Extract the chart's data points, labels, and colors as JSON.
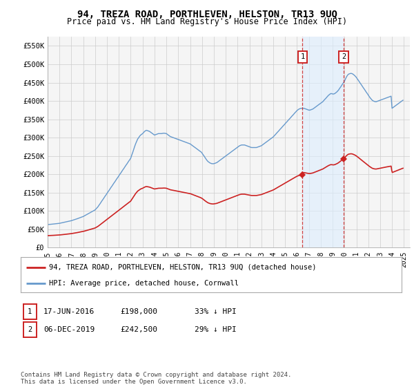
{
  "title": "94, TREZA ROAD, PORTHLEVEN, HELSTON, TR13 9UQ",
  "subtitle": "Price paid vs. HM Land Registry's House Price Index (HPI)",
  "hpi_color": "#6699cc",
  "price_color": "#cc2222",
  "vline_color": "#cc2222",
  "highlight_bg": "#ddeeff",
  "ylim": [
    0,
    575000
  ],
  "yticks": [
    0,
    50000,
    100000,
    150000,
    200000,
    250000,
    300000,
    350000,
    400000,
    450000,
    500000,
    550000
  ],
  "ytick_labels": [
    "£0",
    "£50K",
    "£100K",
    "£150K",
    "£200K",
    "£250K",
    "£300K",
    "£350K",
    "£400K",
    "£450K",
    "£500K",
    "£550K"
  ],
  "xlim_start": 1995.0,
  "xlim_end": 2025.5,
  "xtick_years": [
    1995,
    1996,
    1997,
    1998,
    1999,
    2000,
    2001,
    2002,
    2003,
    2004,
    2005,
    2006,
    2007,
    2008,
    2009,
    2010,
    2011,
    2012,
    2013,
    2014,
    2015,
    2016,
    2017,
    2018,
    2019,
    2020,
    2021,
    2022,
    2023,
    2024,
    2025
  ],
  "hpi_x": [
    1995.0,
    1995.08,
    1995.17,
    1995.25,
    1995.33,
    1995.42,
    1995.5,
    1995.58,
    1995.67,
    1995.75,
    1995.83,
    1995.92,
    1996.0,
    1996.08,
    1996.17,
    1996.25,
    1996.33,
    1996.42,
    1996.5,
    1996.58,
    1996.67,
    1996.75,
    1996.83,
    1996.92,
    1997.0,
    1997.08,
    1997.17,
    1997.25,
    1997.33,
    1997.42,
    1997.5,
    1997.58,
    1997.67,
    1997.75,
    1997.83,
    1997.92,
    1998.0,
    1998.08,
    1998.17,
    1998.25,
    1998.33,
    1998.42,
    1998.5,
    1998.58,
    1998.67,
    1998.75,
    1998.83,
    1998.92,
    1999.0,
    1999.08,
    1999.17,
    1999.25,
    1999.33,
    1999.42,
    1999.5,
    1999.58,
    1999.67,
    1999.75,
    1999.83,
    1999.92,
    2000.0,
    2000.08,
    2000.17,
    2000.25,
    2000.33,
    2000.42,
    2000.5,
    2000.58,
    2000.67,
    2000.75,
    2000.83,
    2000.92,
    2001.0,
    2001.08,
    2001.17,
    2001.25,
    2001.33,
    2001.42,
    2001.5,
    2001.58,
    2001.67,
    2001.75,
    2001.83,
    2001.92,
    2002.0,
    2002.08,
    2002.17,
    2002.25,
    2002.33,
    2002.42,
    2002.5,
    2002.58,
    2002.67,
    2002.75,
    2002.83,
    2002.92,
    2003.0,
    2003.08,
    2003.17,
    2003.25,
    2003.33,
    2003.42,
    2003.5,
    2003.58,
    2003.67,
    2003.75,
    2003.83,
    2003.92,
    2004.0,
    2004.08,
    2004.17,
    2004.25,
    2004.33,
    2004.42,
    2004.5,
    2004.58,
    2004.67,
    2004.75,
    2004.83,
    2004.92,
    2005.0,
    2005.08,
    2005.17,
    2005.25,
    2005.33,
    2005.42,
    2005.5,
    2005.58,
    2005.67,
    2005.75,
    2005.83,
    2005.92,
    2006.0,
    2006.08,
    2006.17,
    2006.25,
    2006.33,
    2006.42,
    2006.5,
    2006.58,
    2006.67,
    2006.75,
    2006.83,
    2006.92,
    2007.0,
    2007.08,
    2007.17,
    2007.25,
    2007.33,
    2007.42,
    2007.5,
    2007.58,
    2007.67,
    2007.75,
    2007.83,
    2007.92,
    2008.0,
    2008.08,
    2008.17,
    2008.25,
    2008.33,
    2008.42,
    2008.5,
    2008.58,
    2008.67,
    2008.75,
    2008.83,
    2008.92,
    2009.0,
    2009.08,
    2009.17,
    2009.25,
    2009.33,
    2009.42,
    2009.5,
    2009.58,
    2009.67,
    2009.75,
    2009.83,
    2009.92,
    2010.0,
    2010.08,
    2010.17,
    2010.25,
    2010.33,
    2010.42,
    2010.5,
    2010.58,
    2010.67,
    2010.75,
    2010.83,
    2010.92,
    2011.0,
    2011.08,
    2011.17,
    2011.25,
    2011.33,
    2011.42,
    2011.5,
    2011.58,
    2011.67,
    2011.75,
    2011.83,
    2011.92,
    2012.0,
    2012.08,
    2012.17,
    2012.25,
    2012.33,
    2012.42,
    2012.5,
    2012.58,
    2012.67,
    2012.75,
    2012.83,
    2012.92,
    2013.0,
    2013.08,
    2013.17,
    2013.25,
    2013.33,
    2013.42,
    2013.5,
    2013.58,
    2013.67,
    2013.75,
    2013.83,
    2013.92,
    2014.0,
    2014.08,
    2014.17,
    2014.25,
    2014.33,
    2014.42,
    2014.5,
    2014.58,
    2014.67,
    2014.75,
    2014.83,
    2014.92,
    2015.0,
    2015.08,
    2015.17,
    2015.25,
    2015.33,
    2015.42,
    2015.5,
    2015.58,
    2015.67,
    2015.75,
    2015.83,
    2015.92,
    2016.0,
    2016.08,
    2016.17,
    2016.25,
    2016.33,
    2016.42,
    2016.5,
    2016.58,
    2016.67,
    2016.75,
    2016.83,
    2016.92,
    2017.0,
    2017.08,
    2017.17,
    2017.25,
    2017.33,
    2017.42,
    2017.5,
    2017.58,
    2017.67,
    2017.75,
    2017.83,
    2017.92,
    2018.0,
    2018.08,
    2018.17,
    2018.25,
    2018.33,
    2018.42,
    2018.5,
    2018.58,
    2018.67,
    2018.75,
    2018.83,
    2018.92,
    2019.0,
    2019.08,
    2019.17,
    2019.25,
    2019.33,
    2019.42,
    2019.5,
    2019.58,
    2019.67,
    2019.75,
    2019.83,
    2019.92,
    2020.0,
    2020.08,
    2020.17,
    2020.25,
    2020.33,
    2020.42,
    2020.5,
    2020.58,
    2020.67,
    2020.75,
    2020.83,
    2020.92,
    2021.0,
    2021.08,
    2021.17,
    2021.25,
    2021.33,
    2021.42,
    2021.5,
    2021.58,
    2021.67,
    2021.75,
    2021.83,
    2021.92,
    2022.0,
    2022.08,
    2022.17,
    2022.25,
    2022.33,
    2022.42,
    2022.5,
    2022.58,
    2022.67,
    2022.75,
    2022.83,
    2022.92,
    2023.0,
    2023.08,
    2023.17,
    2023.25,
    2023.33,
    2023.42,
    2023.5,
    2023.58,
    2023.67,
    2023.75,
    2023.83,
    2023.92,
    2024.0,
    2024.08,
    2024.17,
    2024.25,
    2024.33,
    2024.42,
    2024.5,
    2024.58,
    2024.67,
    2024.75,
    2024.83,
    2024.92
  ],
  "hpi_y": [
    63000,
    63200,
    63400,
    63700,
    64000,
    64300,
    64600,
    64900,
    65200,
    65500,
    65800,
    66100,
    66400,
    67000,
    67600,
    68200,
    68800,
    69400,
    70000,
    70600,
    71200,
    71800,
    72400,
    73000,
    73600,
    74500,
    75400,
    76300,
    77200,
    78100,
    79000,
    80000,
    81000,
    82000,
    83000,
    84000,
    85000,
    86500,
    88000,
    89500,
    91000,
    92500,
    94000,
    95500,
    97000,
    98500,
    100000,
    101500,
    103000,
    106000,
    109000,
    112000,
    116000,
    120000,
    124000,
    128000,
    132000,
    136000,
    140000,
    144000,
    148000,
    152000,
    156000,
    160000,
    164000,
    168000,
    172000,
    176000,
    180000,
    184000,
    188000,
    192000,
    196000,
    200000,
    204000,
    208000,
    212000,
    216000,
    220000,
    224000,
    228000,
    232000,
    236000,
    240000,
    244000,
    252000,
    260000,
    268000,
    276000,
    284000,
    290000,
    296000,
    300000,
    304000,
    307000,
    309000,
    311000,
    314000,
    317000,
    319000,
    320000,
    319000,
    318000,
    317000,
    315000,
    313000,
    311000,
    309000,
    307000,
    308000,
    309000,
    310000,
    311000,
    311000,
    311000,
    311000,
    311500,
    312000,
    312000,
    311500,
    311000,
    309000,
    307000,
    305000,
    303000,
    302000,
    301000,
    300000,
    299000,
    298000,
    297000,
    296000,
    295000,
    294000,
    293000,
    292000,
    291000,
    290000,
    289000,
    288000,
    287000,
    286000,
    285000,
    284000,
    283000,
    281000,
    279000,
    277000,
    275000,
    273000,
    271000,
    269000,
    267000,
    265000,
    263000,
    261000,
    258000,
    254000,
    250000,
    246000,
    242000,
    238000,
    235000,
    233000,
    231000,
    230000,
    229000,
    229000,
    229000,
    230000,
    231000,
    232000,
    234000,
    236000,
    238000,
    240000,
    242000,
    244000,
    246000,
    248000,
    250000,
    252000,
    254000,
    256000,
    258000,
    260000,
    262000,
    264000,
    266000,
    268000,
    270000,
    272000,
    274000,
    276000,
    278000,
    279000,
    280000,
    280000,
    280000,
    280000,
    279000,
    278000,
    277000,
    276000,
    275000,
    274000,
    273000,
    273000,
    273000,
    273000,
    273000,
    273000,
    274000,
    275000,
    276000,
    277000,
    278000,
    280000,
    282000,
    284000,
    286000,
    288000,
    290000,
    292000,
    294000,
    296000,
    298000,
    300000,
    302000,
    305000,
    308000,
    311000,
    314000,
    317000,
    320000,
    323000,
    326000,
    329000,
    332000,
    335000,
    338000,
    341000,
    344000,
    347000,
    350000,
    353000,
    356000,
    359000,
    362000,
    365000,
    368000,
    371000,
    374000,
    376000,
    378000,
    379000,
    380000,
    380000,
    380000,
    380000,
    379000,
    378000,
    377000,
    376000,
    375000,
    375000,
    376000,
    377000,
    378000,
    380000,
    382000,
    384000,
    386000,
    388000,
    390000,
    392000,
    394000,
    396000,
    398000,
    401000,
    404000,
    407000,
    410000,
    413000,
    416000,
    418000,
    420000,
    420000,
    419000,
    419000,
    420000,
    422000,
    424000,
    427000,
    430000,
    434000,
    438000,
    442000,
    446000,
    450000,
    454000,
    460000,
    466000,
    470000,
    473000,
    474000,
    475000,
    475000,
    474000,
    472000,
    470000,
    467000,
    464000,
    460000,
    456000,
    452000,
    448000,
    444000,
    440000,
    436000,
    432000,
    428000,
    424000,
    420000,
    416000,
    412000,
    408000,
    405000,
    402000,
    400000,
    399000,
    398000,
    398000,
    399000,
    400000,
    401000,
    402000,
    403000,
    404000,
    405000,
    406000,
    407000,
    408000,
    409000,
    410000,
    411000,
    412000,
    413000,
    380000,
    382000,
    384000,
    386000,
    388000,
    390000,
    392000,
    394000,
    396000,
    398000,
    400000,
    402000
  ],
  "transaction1_x": 2016.46,
  "transaction1_y": 198000,
  "transaction1_label": "1",
  "transaction2_x": 2019.92,
  "transaction2_y": 242500,
  "transaction2_label": "2",
  "legend_line1": "94, TREZA ROAD, PORTHLEVEN, HELSTON, TR13 9UQ (detached house)",
  "legend_line2": "HPI: Average price, detached house, Cornwall",
  "ann1_date": "17-JUN-2016",
  "ann1_price": "£198,000",
  "ann1_hpi": "33% ↓ HPI",
  "ann2_date": "06-DEC-2019",
  "ann2_price": "£242,500",
  "ann2_hpi": "29% ↓ HPI",
  "footnote": "Contains HM Land Registry data © Crown copyright and database right 2024.\nThis data is licensed under the Open Government Licence v3.0.",
  "bg_color": "#ffffff",
  "grid_color": "#cccccc",
  "plot_bg": "#f5f5f5"
}
